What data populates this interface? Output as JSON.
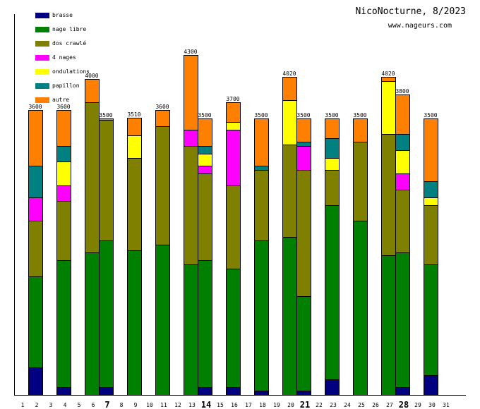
{
  "header": {
    "title": "NicoNocturne, 8/2023",
    "subtitle": "www.nageurs.com"
  },
  "legend": [
    {
      "key": "brasse",
      "label": "brasse",
      "color": "#000080"
    },
    {
      "key": "nage_libre",
      "label": "nage libre",
      "color": "#008000"
    },
    {
      "key": "dos_crawle",
      "label": "dos crawlé",
      "color": "#808000"
    },
    {
      "key": "quatre_nages",
      "label": "4 nages",
      "color": "#ff00ff"
    },
    {
      "key": "ondulations",
      "label": "ondulations",
      "color": "#ffff00"
    },
    {
      "key": "papillon",
      "label": "papillon",
      "color": "#008080"
    },
    {
      "key": "autre",
      "label": "autre",
      "color": "#ff8000"
    }
  ],
  "chart_data": {
    "type": "bar",
    "stacked": true,
    "title": "NicoNocturne, 8/2023",
    "subtitle": "www.nageurs.com",
    "xlabel": "",
    "ylabel": "",
    "x_ticks": [
      "1",
      "2",
      "3",
      "4",
      "5",
      "6",
      "7",
      "8",
      "9",
      "10",
      "11",
      "12",
      "13",
      "14",
      "15",
      "16",
      "17",
      "18",
      "19",
      "20",
      "21",
      "22",
      "23",
      "24",
      "25",
      "26",
      "27",
      "28",
      "29",
      "30",
      "31"
    ],
    "bold_ticks": [
      "7",
      "14",
      "21",
      "28"
    ],
    "ylim": [
      0,
      4300
    ],
    "legend_position": "top-left",
    "series_order": [
      "brasse",
      "nage_libre",
      "dos_crawle",
      "quatre_nages",
      "ondulations",
      "papillon",
      "autre"
    ],
    "days": [
      {
        "day": 2,
        "total_label": "3600",
        "brasse": 350,
        "nage_libre": 1150,
        "dos_crawle": 700,
        "quatre_nages": 300,
        "ondulations": 0,
        "papillon": 400,
        "autre": 700
      },
      {
        "day": 4,
        "total_label": "3600",
        "brasse": 100,
        "nage_libre": 1600,
        "dos_crawle": 750,
        "quatre_nages": 200,
        "ondulations": 300,
        "papillon": 200,
        "autre": 450
      },
      {
        "day": 6,
        "total_label": "4000",
        "brasse": 0,
        "nage_libre": 1800,
        "dos_crawle": 1900,
        "quatre_nages": 0,
        "ondulations": 0,
        "papillon": 0,
        "autre": 300
      },
      {
        "day": 7,
        "total_label": "3500",
        "brasse": 100,
        "nage_libre": 1850,
        "dos_crawle": 1530,
        "quatre_nages": 0,
        "ondulations": 0,
        "papillon": 0,
        "autre": 20
      },
      {
        "day": 9,
        "total_label": "3510",
        "brasse": 0,
        "nage_libre": 1830,
        "dos_crawle": 1170,
        "quatre_nages": 0,
        "ondulations": 280,
        "papillon": 0,
        "autre": 230
      },
      {
        "day": 11,
        "total_label": "3600",
        "brasse": 0,
        "nage_libre": 1900,
        "dos_crawle": 1500,
        "quatre_nages": 0,
        "ondulations": 0,
        "papillon": 0,
        "autre": 200
      },
      {
        "day": 13,
        "total_label": "4300",
        "brasse": 0,
        "nage_libre": 1650,
        "dos_crawle": 1500,
        "quatre_nages": 200,
        "ondulations": 0,
        "papillon": 0,
        "autre": 950
      },
      {
        "day": 14,
        "total_label": "3500",
        "brasse": 100,
        "nage_libre": 1600,
        "dos_crawle": 1100,
        "quatre_nages": 100,
        "ondulations": 150,
        "papillon": 100,
        "autre": 350
      },
      {
        "day": 16,
        "total_label": "3700",
        "brasse": 100,
        "nage_libre": 1500,
        "dos_crawle": 1050,
        "quatre_nages": 700,
        "ondulations": 100,
        "papillon": 0,
        "autre": 250
      },
      {
        "day": 18,
        "total_label": "3500",
        "brasse": 50,
        "nage_libre": 1900,
        "dos_crawle": 900,
        "quatre_nages": 0,
        "ondulations": 0,
        "papillon": 50,
        "autre": 600
      },
      {
        "day": 20,
        "total_label": "4020",
        "brasse": 0,
        "nage_libre": 2000,
        "dos_crawle": 1170,
        "quatre_nages": 0,
        "ondulations": 560,
        "papillon": 0,
        "autre": 290
      },
      {
        "day": 21,
        "total_label": "3500",
        "brasse": 50,
        "nage_libre": 1200,
        "dos_crawle": 1600,
        "quatre_nages": 300,
        "ondulations": 0,
        "papillon": 50,
        "autre": 300
      },
      {
        "day": 23,
        "total_label": "3500",
        "brasse": 200,
        "nage_libre": 2200,
        "dos_crawle": 450,
        "quatre_nages": 0,
        "ondulations": 150,
        "papillon": 250,
        "autre": 250
      },
      {
        "day": 25,
        "total_label": "3500",
        "brasse": 0,
        "nage_libre": 2200,
        "dos_crawle": 1000,
        "quatre_nages": 0,
        "ondulations": 0,
        "papillon": 0,
        "autre": 300
      },
      {
        "day": 27,
        "total_label": "4020",
        "brasse": 0,
        "nage_libre": 1770,
        "dos_crawle": 1530,
        "quatre_nages": 0,
        "ondulations": 670,
        "papillon": 0,
        "autre": 50
      },
      {
        "day": 28,
        "total_label": "3800",
        "brasse": 100,
        "nage_libre": 1700,
        "dos_crawle": 800,
        "quatre_nages": 200,
        "ondulations": 300,
        "papillon": 200,
        "autre": 500
      },
      {
        "day": 30,
        "total_label": "3500",
        "brasse": 250,
        "nage_libre": 1400,
        "dos_crawle": 750,
        "quatre_nages": 0,
        "ondulations": 100,
        "papillon": 200,
        "autre": 800
      }
    ]
  }
}
